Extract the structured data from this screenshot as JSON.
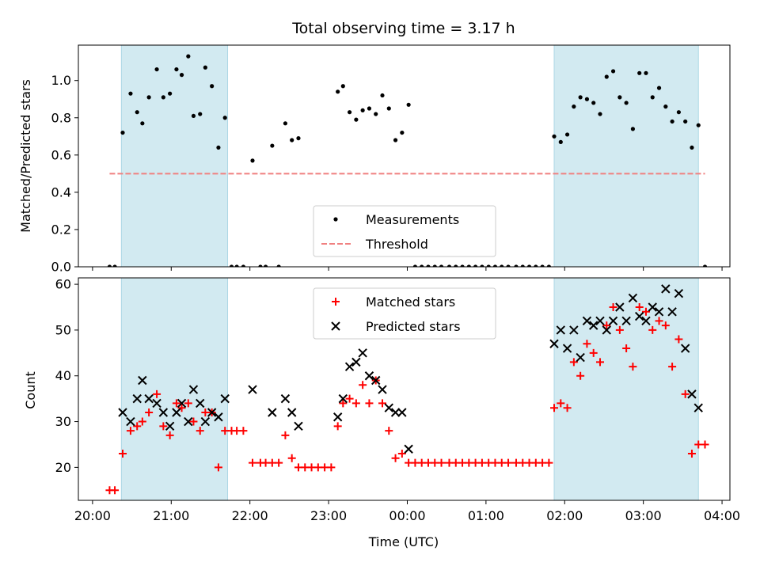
{
  "title": "Total observing time = 3.17 h",
  "shade_color": "#add8e6",
  "chart_data": [
    {
      "type": "scatter",
      "ylabel": "Matched/Predicted stars",
      "ylim": [
        0,
        1.19
      ],
      "yticks": [
        "0.0",
        "0.2",
        "0.4",
        "0.6",
        "0.8",
        "1.0"
      ],
      "xlim_hours": [
        19.82,
        28.1
      ],
      "shaded_intervals": [
        [
          "20:22",
          "21:43"
        ],
        [
          "01:52",
          "03:42"
        ]
      ],
      "threshold": {
        "value": 0.5,
        "x_range": [
          "20:13",
          "03:47"
        ],
        "color": "#f08080",
        "style": "dashed"
      },
      "legend": {
        "position": "lower center",
        "entries": [
          "Measurements",
          "Threshold"
        ]
      },
      "series": [
        {
          "name": "Measurements",
          "color": "#000000",
          "marker": "dot",
          "points": [
            [
              "20:13",
              0
            ],
            [
              "20:17",
              0
            ],
            [
              "20:23",
              0.72
            ],
            [
              "20:29",
              0.93
            ],
            [
              "20:34",
              0.83
            ],
            [
              "20:38",
              0.77
            ],
            [
              "20:43",
              0.91
            ],
            [
              "20:49",
              1.06
            ],
            [
              "20:54",
              0.91
            ],
            [
              "20:59",
              0.93
            ],
            [
              "21:04",
              1.06
            ],
            [
              "21:08",
              1.03
            ],
            [
              "21:13",
              1.13
            ],
            [
              "21:17",
              0.81
            ],
            [
              "21:22",
              0.82
            ],
            [
              "21:26",
              1.07
            ],
            [
              "21:31",
              0.97
            ],
            [
              "21:36",
              0.64
            ],
            [
              "21:41",
              0.8
            ],
            [
              "21:46",
              0
            ],
            [
              "21:50",
              0
            ],
            [
              "21:55",
              0
            ],
            [
              "22:02",
              0.57
            ],
            [
              "22:08",
              0
            ],
            [
              "22:12",
              0
            ],
            [
              "22:17",
              0.65
            ],
            [
              "22:22",
              0
            ],
            [
              "22:27",
              0.77
            ],
            [
              "22:32",
              0.68
            ],
            [
              "22:37",
              0.69
            ],
            [
              "23:07",
              0.94
            ],
            [
              "23:11",
              0.97
            ],
            [
              "23:16",
              0.83
            ],
            [
              "23:21",
              0.79
            ],
            [
              "23:26",
              0.84
            ],
            [
              "23:31",
              0.85
            ],
            [
              "23:36",
              0.82
            ],
            [
              "23:41",
              0.92
            ],
            [
              "23:46",
              0.85
            ],
            [
              "23:51",
              0.68
            ],
            [
              "23:56",
              0.72
            ],
            [
              "00:01",
              0.87
            ],
            [
              "00:06",
              0
            ],
            [
              "00:11",
              0
            ],
            [
              "00:16",
              0
            ],
            [
              "00:21",
              0
            ],
            [
              "00:26",
              0
            ],
            [
              "00:32",
              0
            ],
            [
              "00:37",
              0
            ],
            [
              "00:42",
              0
            ],
            [
              "00:47",
              0
            ],
            [
              "00:52",
              0
            ],
            [
              "00:57",
              0
            ],
            [
              "01:02",
              0
            ],
            [
              "01:07",
              0
            ],
            [
              "01:12",
              0
            ],
            [
              "01:17",
              0
            ],
            [
              "01:23",
              0
            ],
            [
              "01:28",
              0
            ],
            [
              "01:33",
              0
            ],
            [
              "01:38",
              0
            ],
            [
              "01:43",
              0
            ],
            [
              "01:48",
              0
            ],
            [
              "01:52",
              0.7
            ],
            [
              "01:57",
              0.67
            ],
            [
              "02:02",
              0.71
            ],
            [
              "02:07",
              0.86
            ],
            [
              "02:12",
              0.91
            ],
            [
              "02:17",
              0.9
            ],
            [
              "02:22",
              0.88
            ],
            [
              "02:27",
              0.82
            ],
            [
              "02:32",
              1.02
            ],
            [
              "02:37",
              1.05
            ],
            [
              "02:42",
              0.91
            ],
            [
              "02:47",
              0.88
            ],
            [
              "02:52",
              0.74
            ],
            [
              "02:57",
              1.04
            ],
            [
              "03:02",
              1.04
            ],
            [
              "03:07",
              0.91
            ],
            [
              "03:12",
              0.96
            ],
            [
              "03:17",
              0.86
            ],
            [
              "03:22",
              0.78
            ],
            [
              "03:27",
              0.83
            ],
            [
              "03:32",
              0.78
            ],
            [
              "03:37",
              0.64
            ],
            [
              "03:42",
              0.76
            ],
            [
              "03:47",
              0
            ]
          ]
        }
      ]
    },
    {
      "type": "scatter",
      "xlabel": "Time (UTC)",
      "ylabel": "Count",
      "ylim": [
        12.8,
        61.4
      ],
      "yticks": [
        "20",
        "30",
        "40",
        "50",
        "60"
      ],
      "xticks": [
        "20:00",
        "21:00",
        "22:00",
        "23:00",
        "00:00",
        "01:00",
        "02:00",
        "03:00",
        "04:00"
      ],
      "xlim_hours": [
        19.82,
        28.1
      ],
      "shaded_intervals": [
        [
          "20:22",
          "21:43"
        ],
        [
          "01:52",
          "03:42"
        ]
      ],
      "legend": {
        "position": "upper center",
        "entries": [
          "Matched stars",
          "Predicted stars"
        ]
      },
      "series": [
        {
          "name": "Matched stars",
          "color": "#ff0000",
          "marker": "plus",
          "points": [
            [
              "20:13",
              15
            ],
            [
              "20:17",
              15
            ],
            [
              "20:23",
              23
            ],
            [
              "20:29",
              28
            ],
            [
              "20:34",
              29
            ],
            [
              "20:38",
              30
            ],
            [
              "20:43",
              32
            ],
            [
              "20:49",
              36
            ],
            [
              "20:54",
              29
            ],
            [
              "20:59",
              27
            ],
            [
              "21:04",
              34
            ],
            [
              "21:08",
              33
            ],
            [
              "21:13",
              34
            ],
            [
              "21:17",
              30
            ],
            [
              "21:22",
              28
            ],
            [
              "21:26",
              32
            ],
            [
              "21:31",
              32
            ],
            [
              "21:36",
              20
            ],
            [
              "21:41",
              28
            ],
            [
              "21:46",
              28
            ],
            [
              "21:50",
              28
            ],
            [
              "21:55",
              28
            ],
            [
              "22:02",
              21
            ],
            [
              "22:08",
              21
            ],
            [
              "22:12",
              21
            ],
            [
              "22:17",
              21
            ],
            [
              "22:22",
              21
            ],
            [
              "22:27",
              27
            ],
            [
              "22:32",
              22
            ],
            [
              "22:37",
              20
            ],
            [
              "22:42",
              20
            ],
            [
              "22:47",
              20
            ],
            [
              "22:52",
              20
            ],
            [
              "22:57",
              20
            ],
            [
              "23:02",
              20
            ],
            [
              "23:07",
              29
            ],
            [
              "23:11",
              34
            ],
            [
              "23:16",
              35
            ],
            [
              "23:21",
              34
            ],
            [
              "23:26",
              38
            ],
            [
              "23:31",
              34
            ],
            [
              "23:36",
              39
            ],
            [
              "23:41",
              34
            ],
            [
              "23:46",
              28
            ],
            [
              "23:51",
              22
            ],
            [
              "23:56",
              23
            ],
            [
              "00:01",
              21
            ],
            [
              "00:06",
              21
            ],
            [
              "00:11",
              21
            ],
            [
              "00:16",
              21
            ],
            [
              "00:21",
              21
            ],
            [
              "00:26",
              21
            ],
            [
              "00:32",
              21
            ],
            [
              "00:37",
              21
            ],
            [
              "00:42",
              21
            ],
            [
              "00:47",
              21
            ],
            [
              "00:52",
              21
            ],
            [
              "00:57",
              21
            ],
            [
              "01:02",
              21
            ],
            [
              "01:07",
              21
            ],
            [
              "01:12",
              21
            ],
            [
              "01:17",
              21
            ],
            [
              "01:23",
              21
            ],
            [
              "01:28",
              21
            ],
            [
              "01:33",
              21
            ],
            [
              "01:38",
              21
            ],
            [
              "01:43",
              21
            ],
            [
              "01:48",
              21
            ],
            [
              "01:52",
              33
            ],
            [
              "01:57",
              34
            ],
            [
              "02:02",
              33
            ],
            [
              "02:07",
              43
            ],
            [
              "02:12",
              40
            ],
            [
              "02:17",
              47
            ],
            [
              "02:22",
              45
            ],
            [
              "02:27",
              43
            ],
            [
              "02:32",
              51
            ],
            [
              "02:37",
              55
            ],
            [
              "02:42",
              50
            ],
            [
              "02:47",
              46
            ],
            [
              "02:52",
              42
            ],
            [
              "02:57",
              55
            ],
            [
              "03:02",
              54
            ],
            [
              "03:07",
              50
            ],
            [
              "03:12",
              52
            ],
            [
              "03:17",
              51
            ],
            [
              "03:22",
              42
            ],
            [
              "03:27",
              48
            ],
            [
              "03:32",
              36
            ],
            [
              "03:37",
              23
            ],
            [
              "03:42",
              25
            ],
            [
              "03:47",
              25
            ]
          ]
        },
        {
          "name": "Predicted stars",
          "color": "#000000",
          "marker": "x",
          "points": [
            [
              "20:23",
              32
            ],
            [
              "20:29",
              30
            ],
            [
              "20:34",
              35
            ],
            [
              "20:38",
              39
            ],
            [
              "20:43",
              35
            ],
            [
              "20:49",
              34
            ],
            [
              "20:54",
              32
            ],
            [
              "20:59",
              29
            ],
            [
              "21:04",
              32
            ],
            [
              "21:08",
              34
            ],
            [
              "21:13",
              30
            ],
            [
              "21:17",
              37
            ],
            [
              "21:22",
              34
            ],
            [
              "21:26",
              30
            ],
            [
              "21:31",
              32
            ],
            [
              "21:36",
              31
            ],
            [
              "21:41",
              35
            ],
            [
              "22:02",
              37
            ],
            [
              "22:17",
              32
            ],
            [
              "22:27",
              35
            ],
            [
              "22:32",
              32
            ],
            [
              "22:37",
              29
            ],
            [
              "23:07",
              31
            ],
            [
              "23:11",
              35
            ],
            [
              "23:16",
              42
            ],
            [
              "23:21",
              43
            ],
            [
              "23:26",
              45
            ],
            [
              "23:31",
              40
            ],
            [
              "23:36",
              39
            ],
            [
              "23:41",
              37
            ],
            [
              "23:46",
              33
            ],
            [
              "23:51",
              32
            ],
            [
              "23:56",
              32
            ],
            [
              "00:01",
              24
            ],
            [
              "01:52",
              47
            ],
            [
              "01:57",
              50
            ],
            [
              "02:02",
              46
            ],
            [
              "02:07",
              50
            ],
            [
              "02:12",
              44
            ],
            [
              "02:17",
              52
            ],
            [
              "02:22",
              51
            ],
            [
              "02:27",
              52
            ],
            [
              "02:32",
              50
            ],
            [
              "02:37",
              52
            ],
            [
              "02:42",
              55
            ],
            [
              "02:47",
              52
            ],
            [
              "02:52",
              57
            ],
            [
              "02:57",
              53
            ],
            [
              "03:02",
              52
            ],
            [
              "03:07",
              55
            ],
            [
              "03:12",
              54
            ],
            [
              "03:17",
              59
            ],
            [
              "03:22",
              54
            ],
            [
              "03:27",
              58
            ],
            [
              "03:32",
              46
            ],
            [
              "03:37",
              36
            ],
            [
              "03:42",
              33
            ]
          ]
        }
      ]
    }
  ]
}
